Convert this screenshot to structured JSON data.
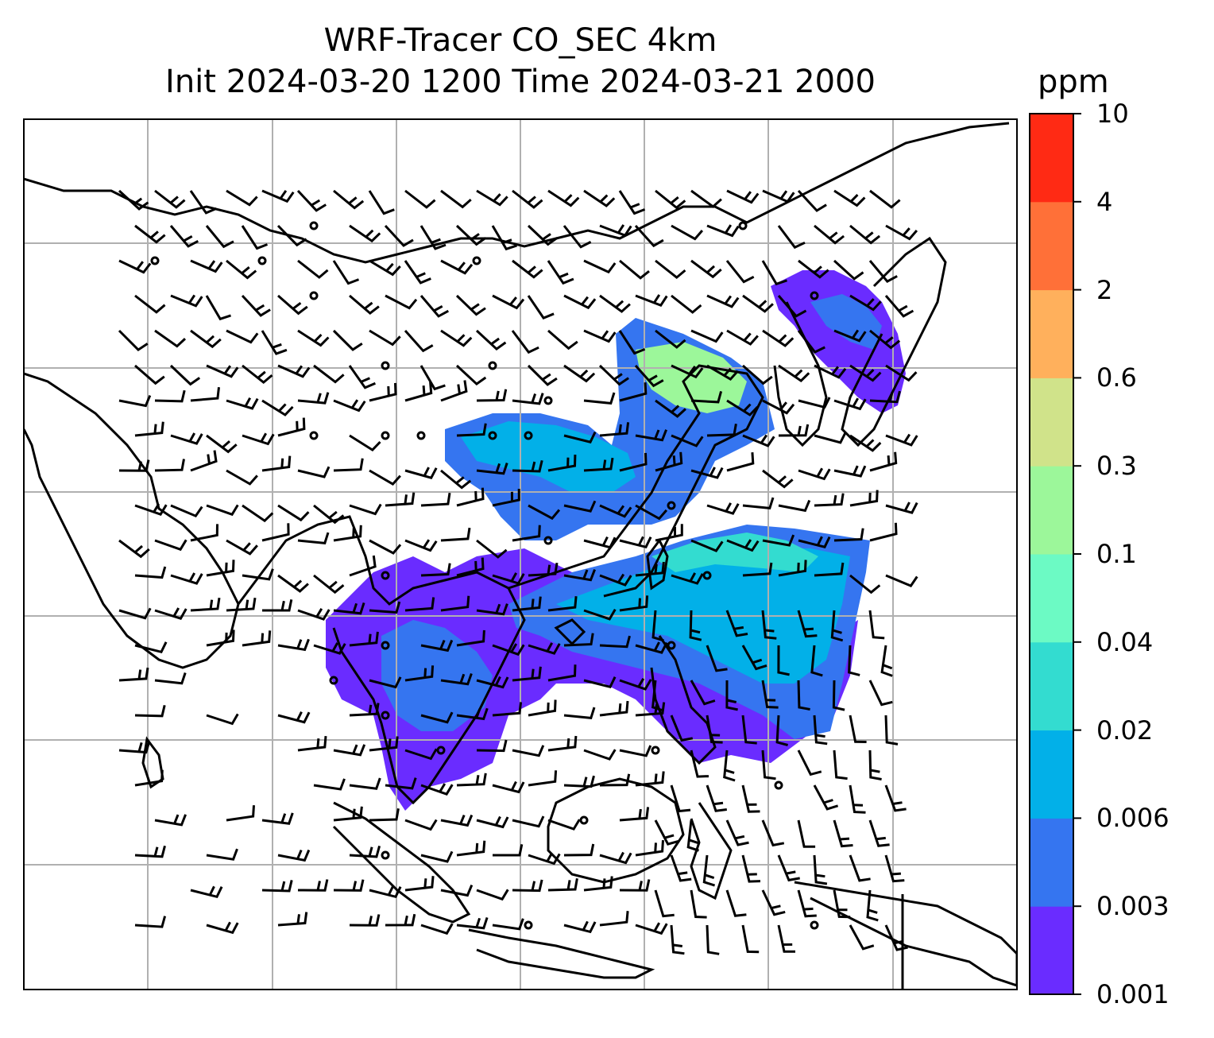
{
  "title": {
    "line1": "WRF-Tracer CO_SEC 4km",
    "line2": "Init 2024-03-20 1200 Time 2024-03-21 2000"
  },
  "chart_data": {
    "type": "heatmap",
    "variable": "CO_SEC",
    "colorbar": {
      "unit": "ppm",
      "levels": [
        "0.001",
        "0.003",
        "0.006",
        "0.02",
        "0.04",
        "0.1",
        "0.3",
        "0.6",
        "2",
        "4",
        "10"
      ],
      "colors": [
        "#6a2cff",
        "#3575f0",
        "#02b0e8",
        "#33dcd0",
        "#6cfac4",
        "#9cf79a",
        "#d0e38a",
        "#ffb05c",
        "#ff7038",
        "#ff2a14"
      ]
    },
    "grid": true,
    "overlays": [
      "coastlines",
      "country borders",
      "wind barbs"
    ]
  }
}
